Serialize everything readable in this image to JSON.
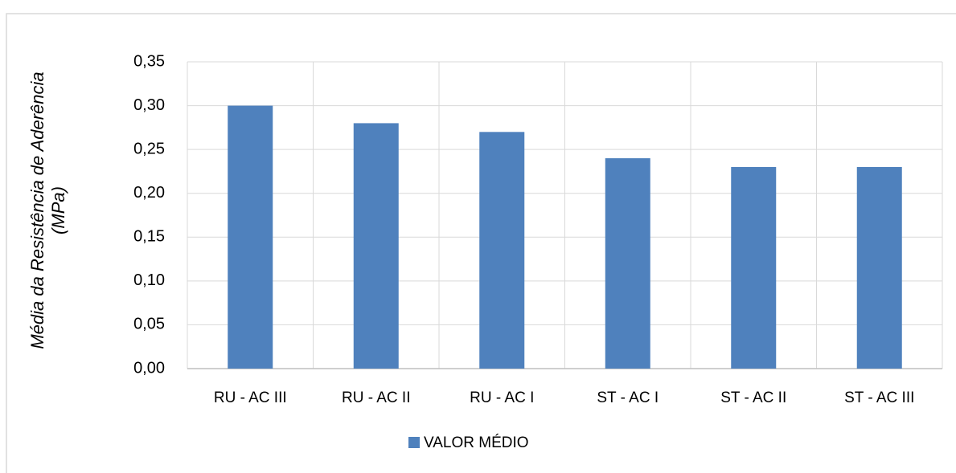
{
  "chart_data": {
    "type": "bar",
    "ylabel": [
      "Média da Resistência de Aderência",
      "(MPa)"
    ],
    "categories": [
      "RU - AC III",
      "RU - AC II",
      "RU - AC I",
      "ST - AC I",
      "ST - AC II",
      "ST - AC III"
    ],
    "series": [
      {
        "name": "VALOR MÉDIO",
        "color": "#4f81bd",
        "values": [
          0.3,
          0.28,
          0.27,
          0.24,
          0.23,
          0.23
        ]
      }
    ],
    "ylim": [
      0,
      0.35
    ],
    "yticks": [
      {
        "value": 0,
        "label": "0,00"
      },
      {
        "value": 0.05,
        "label": "0,05"
      },
      {
        "value": 0.1,
        "label": "0,10"
      },
      {
        "value": 0.15,
        "label": "0,15"
      },
      {
        "value": 0.2,
        "label": "0,20"
      },
      {
        "value": 0.25,
        "label": "0,25"
      },
      {
        "value": 0.3,
        "label": "0,30"
      },
      {
        "value": 0.35,
        "label": "0,35"
      }
    ],
    "grid": true,
    "legend": "bottom"
  }
}
